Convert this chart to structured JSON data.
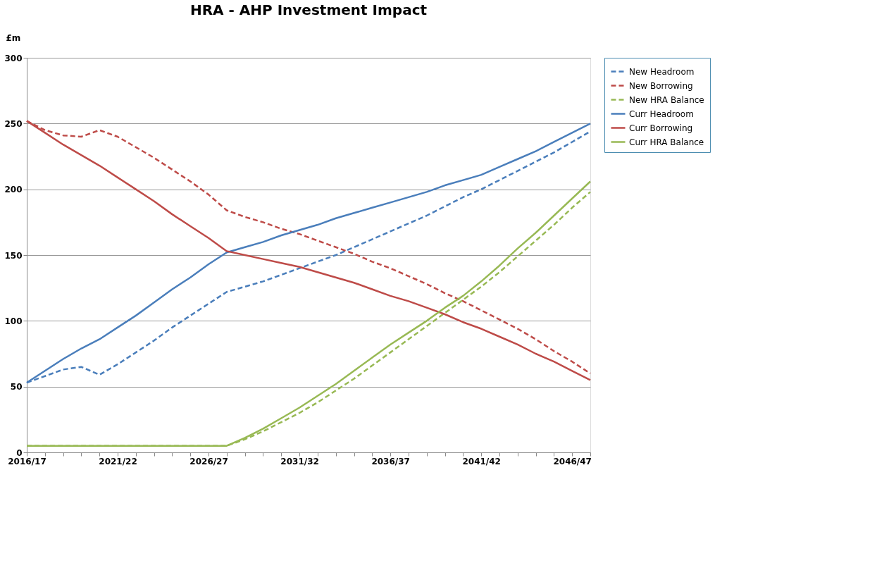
{
  "chart_data": {
    "type": "line",
    "title": "HRA - AHP Investment Impact",
    "ylabel": "£m",
    "categories": [
      "2016/17",
      null,
      null,
      null,
      null,
      "2021/22",
      null,
      null,
      null,
      null,
      "2026/27",
      null,
      null,
      null,
      null,
      "2031/32",
      null,
      null,
      null,
      null,
      "2036/37",
      null,
      null,
      null,
      null,
      "2041/42",
      null,
      null,
      null,
      null,
      "2046/47",
      null
    ],
    "ylim": [
      0,
      300
    ],
    "yticks": [
      0,
      50,
      100,
      150,
      200,
      250,
      300
    ],
    "grid": "y",
    "legend": "top right",
    "marker": "none",
    "series": [
      {
        "name": "New Headroom",
        "color": "#4a7ebb",
        "line_style": "dashed",
        "values": [
          53,
          58,
          63,
          65,
          59,
          67,
          76,
          85,
          95,
          104,
          113,
          122,
          126,
          130,
          135,
          140,
          145,
          150,
          156,
          162,
          168,
          174,
          180,
          187,
          194,
          200,
          207,
          214,
          221,
          228,
          236,
          244
        ]
      },
      {
        "name": "New Borrowing",
        "color": "#be4b48",
        "line_style": "dashed",
        "values": [
          252,
          245,
          241,
          240,
          245,
          240,
          232,
          224,
          215,
          206,
          196,
          184,
          179,
          175,
          170,
          166,
          161,
          156,
          151,
          145,
          140,
          134,
          128,
          121,
          115,
          108,
          101,
          94,
          86,
          77,
          69,
          60
        ]
      },
      {
        "name": "New HRA Balance",
        "color": "#98b954",
        "line_style": "dashed",
        "values": [
          5,
          5,
          5,
          5,
          5,
          5,
          5,
          5,
          5,
          5,
          5,
          5,
          10,
          16,
          23,
          30,
          38,
          47,
          56,
          66,
          76,
          86,
          96,
          106,
          116,
          126,
          137,
          149,
          161,
          173,
          186,
          198
        ]
      },
      {
        "name": "Curr Headroom",
        "color": "#4a7ebb",
        "line_style": "solid",
        "values": [
          53,
          62,
          71,
          79,
          86,
          95,
          104,
          114,
          124,
          133,
          143,
          152,
          156,
          160,
          165,
          169,
          173,
          178,
          182,
          186,
          190,
          194,
          198,
          203,
          207,
          211,
          217,
          223,
          229,
          236,
          243,
          250
        ]
      },
      {
        "name": "Curr Borrowing",
        "color": "#be4b48",
        "line_style": "solid",
        "values": [
          252,
          243,
          234,
          226,
          218,
          209,
          200,
          191,
          181,
          172,
          163,
          153,
          150,
          147,
          144,
          141,
          137,
          133,
          129,
          124,
          119,
          115,
          110,
          105,
          99,
          94,
          88,
          82,
          75,
          69,
          62,
          55
        ]
      },
      {
        "name": "Curr HRA Balance",
        "color": "#98b954",
        "line_style": "solid",
        "values": [
          5,
          5,
          5,
          5,
          5,
          5,
          5,
          5,
          5,
          5,
          5,
          5,
          11,
          18,
          26,
          34,
          43,
          52,
          62,
          72,
          82,
          91,
          100,
          110,
          119,
          130,
          142,
          155,
          167,
          180,
          193,
          206
        ]
      }
    ]
  }
}
